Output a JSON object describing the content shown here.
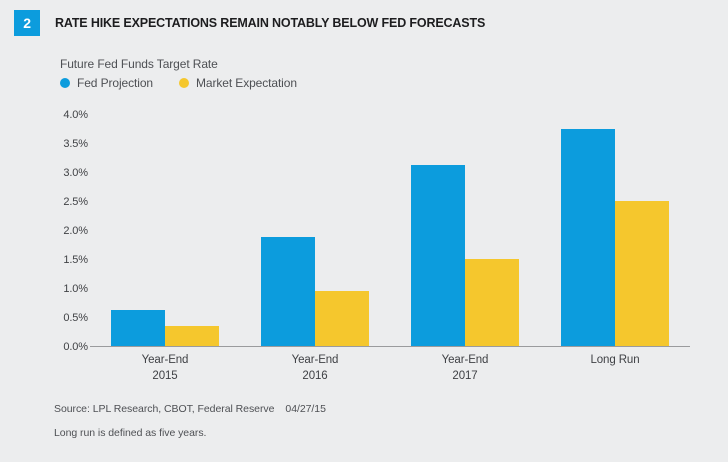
{
  "page": {
    "background": "#ecedee"
  },
  "header": {
    "badge_number": "2",
    "title": "RATE HIKE EXPECTATIONS REMAIN NOTABLY BELOW FED FORECASTS"
  },
  "colors": {
    "fed_projection_blue": "#0c9cdd",
    "market_expectation_yellow": "#f5c72d",
    "badge_background": "#0c9cdd",
    "axis_line_gray": "#9a9b9d",
    "text_gray": "#4e5054"
  },
  "chart_data": {
    "type": "bar",
    "title": "Future Fed Funds Target Rate",
    "categories": [
      "Year-End 2015",
      "Year-End 2016",
      "Year-End 2017",
      "Long Run"
    ],
    "category_lines": [
      [
        "Year-End",
        "2015"
      ],
      [
        "Year-End",
        "2016"
      ],
      [
        "Year-End",
        "2017"
      ],
      [
        "Long Run"
      ]
    ],
    "series": [
      {
        "name": "Fed Projection",
        "color": "#0c9cdd",
        "values": [
          0.625,
          1.875,
          3.125,
          3.75
        ]
      },
      {
        "name": "Market Expectation",
        "color": "#f5c72d",
        "values": [
          0.35,
          0.95,
          1.5,
          2.5
        ]
      }
    ],
    "xlabel": "",
    "ylabel": "",
    "ylim": [
      0,
      4.0
    ],
    "ytick_step": 0.5,
    "ytick_suffix": "%",
    "grid": false,
    "legend_position": "top-left"
  },
  "legend": {
    "items": [
      {
        "label": "Fed Projection",
        "color": "#0c9cdd"
      },
      {
        "label": "Market Expectation",
        "color": "#f5c72d"
      }
    ]
  },
  "footer": {
    "source": "Source: LPL Research, CBOT, Federal Reserve",
    "date": "04/27/15",
    "note": "Long run is defined as five years."
  }
}
